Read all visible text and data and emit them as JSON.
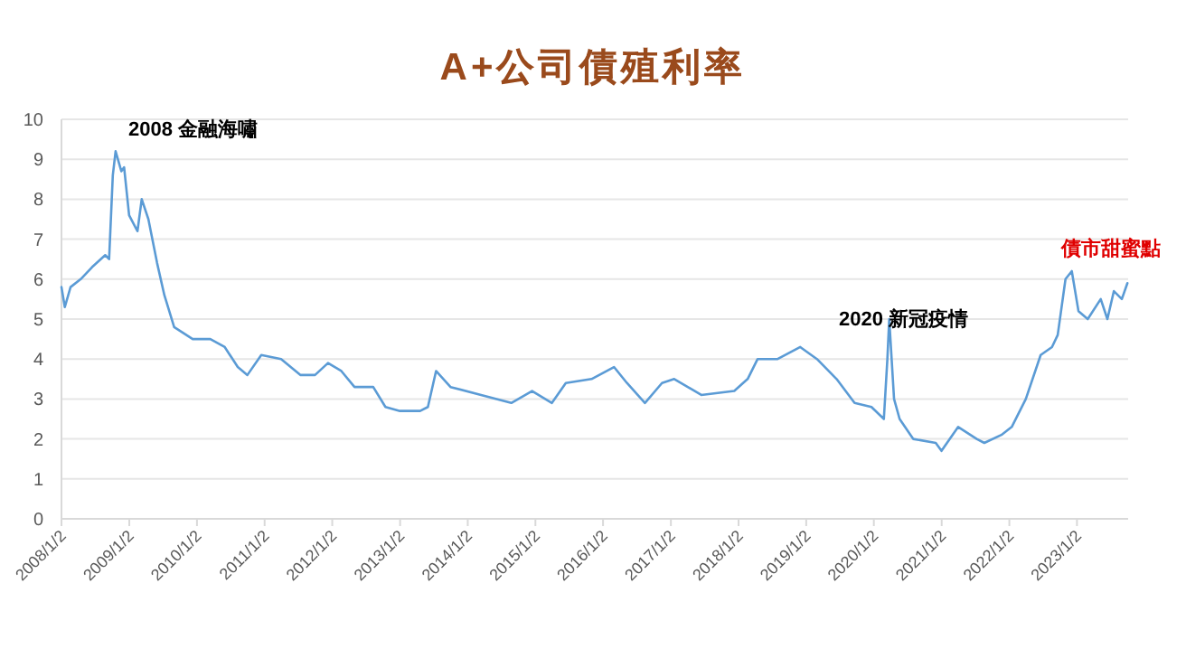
{
  "chart_data": {
    "type": "line",
    "title": "A+公司債殖利率",
    "x": [
      "2008-01-02",
      "2008-01-20",
      "2008-02-20",
      "2008-04-15",
      "2008-06-15",
      "2008-08-25",
      "2008-09-15",
      "2008-10-05",
      "2008-10-20",
      "2008-11-20",
      "2008-12-05",
      "2009-01-01",
      "2009-02-15",
      "2009-03-10",
      "2009-04-15",
      "2009-06-01",
      "2009-07-10",
      "2009-09-01",
      "2009-12-10",
      "2010-03-15",
      "2010-06-01",
      "2010-08-10",
      "2010-10-01",
      "2010-12-15",
      "2011-04-01",
      "2011-07-15",
      "2011-10-01",
      "2011-12-10",
      "2012-02-20",
      "2012-05-01",
      "2012-08-10",
      "2012-10-15",
      "2013-01-01",
      "2013-04-20",
      "2013-06-01",
      "2013-07-15",
      "2013-10-01",
      "2014-03-15",
      "2014-08-25",
      "2014-12-15",
      "2015-04-01",
      "2015-06-15",
      "2015-11-01",
      "2016-03-01",
      "2016-05-10",
      "2016-08-15",
      "2016-11-15",
      "2017-01-20",
      "2017-06-15",
      "2017-12-10",
      "2018-02-20",
      "2018-04-15",
      "2018-08-01",
      "2018-12-01",
      "2019-03-01",
      "2019-06-15",
      "2019-09-20",
      "2019-12-20",
      "2020-02-25",
      "2020-03-15",
      "2020-03-25",
      "2020-04-20",
      "2020-05-20",
      "2020-08-01",
      "2020-12-01",
      "2021-01-01",
      "2021-04-01",
      "2021-07-10",
      "2021-08-20",
      "2021-11-20",
      "2022-01-15",
      "2022-04-01",
      "2022-06-20",
      "2022-08-20",
      "2022-09-20",
      "2022-11-01",
      "2022-12-05",
      "2023-01-10",
      "2023-03-01",
      "2023-05-10",
      "2023-06-15",
      "2023-07-20",
      "2023-09-01",
      "2023-10-01"
    ],
    "series": [
      {
        "color": "#5b9bd5",
        "values": [
          5.8,
          5.3,
          5.8,
          6.0,
          6.3,
          6.6,
          6.5,
          8.6,
          9.2,
          8.7,
          8.8,
          7.6,
          7.2,
          8.0,
          7.5,
          6.4,
          5.6,
          4.8,
          4.5,
          4.5,
          4.3,
          3.8,
          3.6,
          4.1,
          4.0,
          3.6,
          3.6,
          3.9,
          3.7,
          3.3,
          3.3,
          2.8,
          2.7,
          2.7,
          2.8,
          3.7,
          3.3,
          3.1,
          2.9,
          3.2,
          2.9,
          3.4,
          3.5,
          3.8,
          3.4,
          2.9,
          3.4,
          3.5,
          3.1,
          3.2,
          3.5,
          4.0,
          4.0,
          4.3,
          4.0,
          3.5,
          2.9,
          2.8,
          2.5,
          4.0,
          5.0,
          3.0,
          2.5,
          2.0,
          1.9,
          1.7,
          2.3,
          2.0,
          1.9,
          2.1,
          2.3,
          3.0,
          4.1,
          4.3,
          4.6,
          6.0,
          6.2,
          5.2,
          5.0,
          5.5,
          5.0,
          5.7,
          5.5,
          5.9
        ]
      }
    ],
    "xlim": [
      "2008-01-02",
      "2023-10-05"
    ],
    "xticks": [
      {
        "value": "2008-01-02",
        "label": "2008/1/2"
      },
      {
        "value": "2009-01-02",
        "label": "2009/1/2"
      },
      {
        "value": "2010-01-02",
        "label": "2010/1/2"
      },
      {
        "value": "2011-01-02",
        "label": "2011/1/2"
      },
      {
        "value": "2012-01-02",
        "label": "2012/1/2"
      },
      {
        "value": "2013-01-02",
        "label": "2013/1/2"
      },
      {
        "value": "2014-01-02",
        "label": "2014/1/2"
      },
      {
        "value": "2015-01-02",
        "label": "2015/1/2"
      },
      {
        "value": "2016-01-02",
        "label": "2016/1/2"
      },
      {
        "value": "2017-01-02",
        "label": "2017/1/2"
      },
      {
        "value": "2018-01-02",
        "label": "2018/1/2"
      },
      {
        "value": "2019-01-02",
        "label": "2019/1/2"
      },
      {
        "value": "2020-01-02",
        "label": "2020/1/2"
      },
      {
        "value": "2021-01-02",
        "label": "2021/1/2"
      },
      {
        "value": "2022-01-02",
        "label": "2022/1/2"
      },
      {
        "value": "2023-01-02",
        "label": "2023/1/2"
      }
    ],
    "ylim": [
      0,
      10
    ],
    "yticks": [
      0,
      1,
      2,
      3,
      4,
      5,
      6,
      7,
      8,
      9,
      10
    ],
    "grid": "y",
    "marker": "none",
    "line_style": "solid",
    "annotations": [
      "2008 金融海嘯",
      "2020  新冠疫情",
      "債市甜蜜點"
    ]
  }
}
